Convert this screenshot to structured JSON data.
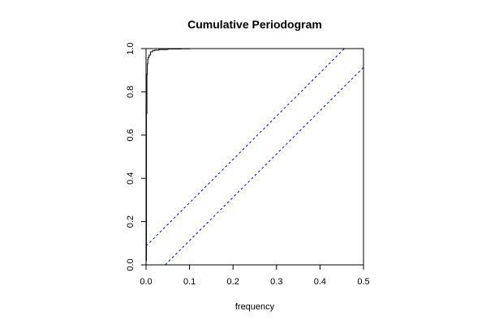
{
  "chart_data": {
    "type": "line",
    "title": "Cumulative Periodogram",
    "xlabel": "frequency",
    "ylabel": "",
    "xlim": [
      0,
      0.5
    ],
    "ylim": [
      0,
      1
    ],
    "x_ticks": [
      0,
      0.1,
      0.2,
      0.3,
      0.4,
      0.5
    ],
    "y_ticks": [
      0,
      0.2,
      0.4,
      0.6,
      0.8,
      1
    ],
    "x_tick_labels": [
      "0.0",
      "0.1",
      "0.2",
      "0.3",
      "0.4",
      "0.5"
    ],
    "y_tick_labels": [
      "0.0",
      "0.2",
      "0.4",
      "0.6",
      "0.8",
      "1.0"
    ],
    "grid": false,
    "series": [
      {
        "style": "step",
        "color": "#000000",
        "x": [
          0,
          0.001,
          0.002,
          0.003,
          0.004,
          0.005,
          0.007,
          0.01,
          0.015,
          0.02,
          0.03,
          0.05,
          0.08,
          0.1,
          0.2,
          0.3,
          0.4,
          0.5
        ],
        "y": [
          0.02,
          0.7,
          0.88,
          0.93,
          0.95,
          0.96,
          0.97,
          0.985,
          0.99,
          0.993,
          0.996,
          0.998,
          0.999,
          1.0,
          1.0,
          1.0,
          1.0,
          1.0
        ]
      }
    ],
    "bands": [
      {
        "style": "dashed",
        "color": "#0000ff",
        "x": [
          0,
          0.456
        ],
        "y": [
          0.087,
          1
        ]
      },
      {
        "style": "dashed",
        "color": "#0000ff",
        "x": [
          0.044,
          0.5
        ],
        "y": [
          0,
          0.913
        ]
      }
    ]
  }
}
